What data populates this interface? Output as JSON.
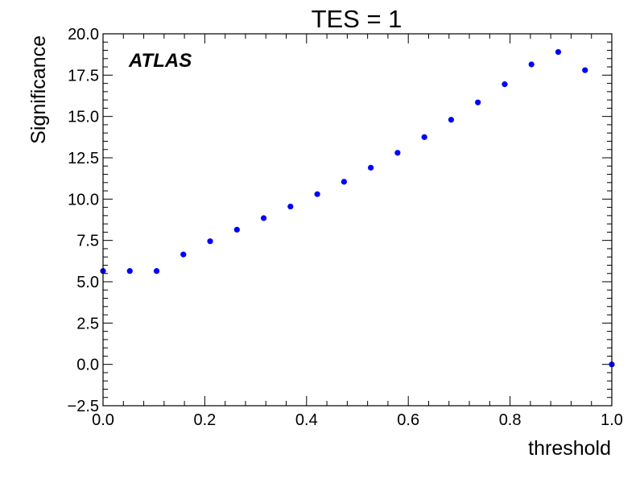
{
  "chart_data": {
    "type": "scatter",
    "title": "TES = 1",
    "xlabel": "threshold",
    "ylabel": "Significance",
    "annotation": "ATLAS",
    "xlim": [
      0.0,
      1.0
    ],
    "ylim": [
      -2.5,
      20.0
    ],
    "x_ticks": [
      0.0,
      0.2,
      0.4,
      0.6,
      0.8,
      1.0
    ],
    "x_tick_labels": [
      "0.0",
      "0.2",
      "0.4",
      "0.6",
      "0.8",
      "1.0"
    ],
    "y_ticks": [
      -2.5,
      0.0,
      2.5,
      5.0,
      7.5,
      10.0,
      12.5,
      15.0,
      17.5,
      20.0
    ],
    "y_tick_labels": [
      "−2.5",
      "0.0",
      "2.5",
      "5.0",
      "7.5",
      "10.0",
      "12.5",
      "15.0",
      "17.5",
      "20.0"
    ],
    "marker_color": "#0000ff",
    "grid": false,
    "series": [
      {
        "x": [
          0.0,
          0.0526,
          0.1053,
          0.1579,
          0.2105,
          0.2632,
          0.3158,
          0.3684,
          0.4211,
          0.4737,
          0.5263,
          0.5789,
          0.6316,
          0.6842,
          0.7368,
          0.7895,
          0.8421,
          0.8947,
          0.9474,
          1.0
        ],
        "y": [
          5.65,
          5.65,
          5.65,
          6.65,
          7.45,
          8.15,
          8.85,
          9.55,
          10.3,
          11.05,
          11.9,
          12.8,
          13.75,
          14.8,
          15.85,
          16.95,
          18.15,
          18.9,
          17.8,
          0.0
        ]
      }
    ]
  }
}
